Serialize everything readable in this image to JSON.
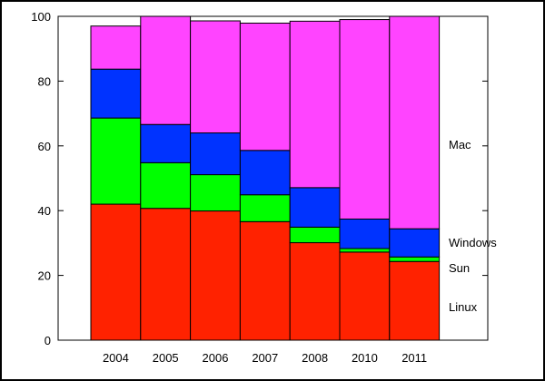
{
  "chart_data": {
    "type": "bar",
    "stacked": true,
    "categories": [
      "2004",
      "2005",
      "2006",
      "2007",
      "2008",
      "2010",
      "2011"
    ],
    "series": [
      {
        "name": "Linux",
        "color": "#ff2200",
        "values": [
          42.0,
          40.7,
          39.9,
          36.6,
          30.1,
          27.2,
          24.3
        ]
      },
      {
        "name": "Sun",
        "color": "#00ff00",
        "values": [
          26.6,
          14.1,
          11.2,
          8.3,
          4.8,
          1.1,
          1.4
        ]
      },
      {
        "name": "Windows",
        "color": "#0033ff",
        "values": [
          15.1,
          11.8,
          12.9,
          13.7,
          12.2,
          9.1,
          8.7
        ]
      },
      {
        "name": "Mac",
        "color": "#ff44ff",
        "values": [
          13.3,
          33.4,
          34.6,
          39.3,
          51.4,
          61.6,
          65.6
        ]
      }
    ],
    "yticks": [
      "0",
      "20",
      "40",
      "60",
      "80",
      "100"
    ],
    "ylim": [
      0,
      100
    ],
    "grid": false,
    "legend": "right-inline",
    "title": "",
    "xlabel": "",
    "ylabel": ""
  }
}
